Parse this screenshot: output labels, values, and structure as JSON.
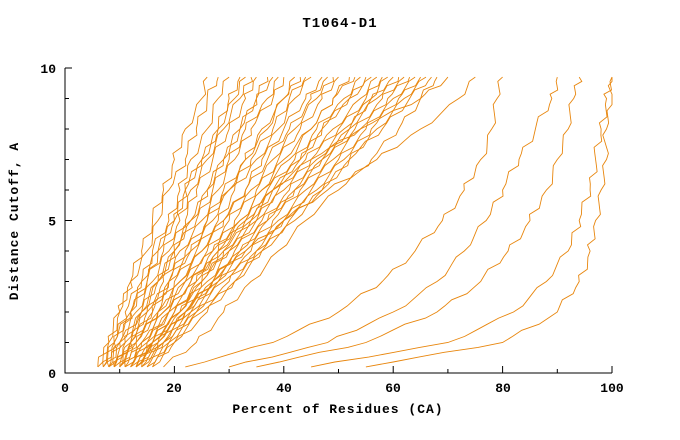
{
  "page": {
    "title": "T1064-D1"
  },
  "chart_data": {
    "type": "line",
    "title": "T1064-D1",
    "xlabel": "Percent of Residues (CA)",
    "ylabel": "Distance Cutoff, A",
    "xlim": [
      0,
      100
    ],
    "ylim": [
      0,
      10
    ],
    "x_ticks": [
      0,
      20,
      40,
      60,
      80,
      100
    ],
    "y_ticks": [
      0,
      5,
      10
    ],
    "grid": "off",
    "legend": "none",
    "line_color": "#E8860D",
    "axis_color": "#000000",
    "y_samples": [
      0.2,
      1,
      2,
      3,
      4,
      5,
      6,
      7,
      8,
      9,
      9.7
    ],
    "curves": [
      [
        6,
        8,
        10,
        12,
        14,
        16,
        18,
        20,
        22,
        25,
        26
      ],
      [
        6,
        8,
        10,
        12,
        15,
        17,
        19,
        22,
        24,
        26,
        28
      ],
      [
        7,
        9,
        11,
        14,
        16,
        19,
        21,
        23,
        26,
        28,
        30
      ],
      [
        7,
        9,
        12,
        14,
        17,
        20,
        22,
        25,
        28,
        30,
        32
      ],
      [
        7,
        9,
        12,
        15,
        18,
        21,
        23,
        26,
        29,
        32,
        34
      ],
      [
        8,
        10,
        13,
        16,
        19,
        22,
        24,
        27,
        30,
        33,
        35
      ],
      [
        8,
        10,
        14,
        17,
        20,
        23,
        26,
        29,
        32,
        35,
        37
      ],
      [
        8,
        11,
        14,
        17,
        20,
        24,
        27,
        30,
        33,
        37,
        39
      ],
      [
        9,
        12,
        15,
        18,
        21,
        25,
        28,
        31,
        34,
        38,
        40
      ],
      [
        9,
        12,
        15,
        19,
        22,
        26,
        29,
        33,
        36,
        40,
        42
      ],
      [
        9,
        12,
        16,
        19,
        23,
        27,
        30,
        34,
        38,
        41,
        44
      ],
      [
        10,
        13,
        17,
        20,
        24,
        28,
        31,
        35,
        39,
        42,
        45
      ],
      [
        10,
        13,
        17,
        21,
        25,
        29,
        33,
        36,
        40,
        44,
        47
      ],
      [
        10,
        13,
        17,
        22,
        26,
        30,
        34,
        38,
        42,
        46,
        49
      ],
      [
        11,
        14,
        18,
        22,
        27,
        31,
        35,
        39,
        43,
        47,
        50
      ],
      [
        11,
        14,
        19,
        23,
        27,
        32,
        36,
        40,
        45,
        49,
        52
      ],
      [
        11,
        15,
        19,
        24,
        28,
        33,
        37,
        42,
        46,
        51,
        54
      ],
      [
        12,
        16,
        20,
        25,
        29,
        34,
        38,
        43,
        47,
        52,
        55
      ],
      [
        12,
        16,
        21,
        25,
        30,
        35,
        39,
        44,
        49,
        54,
        57
      ],
      [
        12,
        16,
        21,
        26,
        30,
        35,
        40,
        45,
        50,
        55,
        58
      ],
      [
        13,
        17,
        22,
        27,
        31,
        36,
        41,
        46,
        51,
        56,
        59
      ],
      [
        13,
        17,
        22,
        27,
        32,
        37,
        42,
        47,
        52,
        56,
        60
      ],
      [
        13,
        17,
        22,
        27,
        32,
        37,
        42,
        47,
        52,
        57,
        61
      ],
      [
        14,
        18,
        23,
        28,
        33,
        38,
        43,
        48,
        53,
        58,
        62
      ],
      [
        14,
        18,
        23,
        28,
        34,
        39,
        44,
        49,
        54,
        59,
        63
      ],
      [
        15,
        19,
        24,
        29,
        35,
        40,
        45,
        50,
        55,
        60,
        64
      ],
      [
        15,
        19,
        24,
        30,
        35,
        40,
        46,
        51,
        56,
        61,
        65
      ],
      [
        16,
        20,
        25,
        31,
        36,
        41,
        47,
        52,
        57,
        62,
        66
      ],
      [
        16,
        20,
        26,
        31,
        36,
        42,
        47,
        52,
        58,
        63,
        67
      ],
      [
        8,
        10,
        12,
        15,
        17,
        20,
        22,
        25,
        28,
        31,
        33
      ],
      [
        9,
        11,
        14,
        17,
        20,
        23,
        26,
        29,
        32,
        35,
        38
      ],
      [
        10,
        12,
        16,
        19,
        23,
        26,
        30,
        33,
        37,
        40,
        43
      ],
      [
        11,
        14,
        18,
        21,
        25,
        29,
        33,
        37,
        41,
        45,
        48
      ],
      [
        12,
        15,
        19,
        23,
        28,
        32,
        36,
        41,
        45,
        49,
        53
      ],
      [
        13,
        16,
        21,
        25,
        29,
        34,
        38,
        43,
        47,
        52,
        56
      ],
      [
        13,
        16,
        20,
        24,
        28,
        33,
        38,
        45,
        54,
        65,
        70
      ],
      [
        14,
        18,
        22,
        27,
        33,
        40,
        48,
        57,
        65,
        72,
        75
      ],
      [
        18,
        24,
        29,
        34,
        39,
        44,
        50,
        56,
        61,
        65,
        68
      ],
      [
        22,
        38,
        50,
        58,
        64,
        69,
        73,
        76,
        78,
        79,
        80
      ],
      [
        30,
        48,
        60,
        68,
        73,
        77,
        80,
        83,
        86,
        89,
        90
      ],
      [
        35,
        55,
        68,
        76,
        81,
        85,
        88,
        90,
        92,
        93,
        94
      ],
      [
        45,
        70,
        82,
        88,
        92,
        94,
        96,
        97,
        98,
        99,
        100
      ],
      [
        55,
        80,
        90,
        94,
        96,
        97,
        98,
        99,
        99,
        100,
        100
      ]
    ]
  }
}
